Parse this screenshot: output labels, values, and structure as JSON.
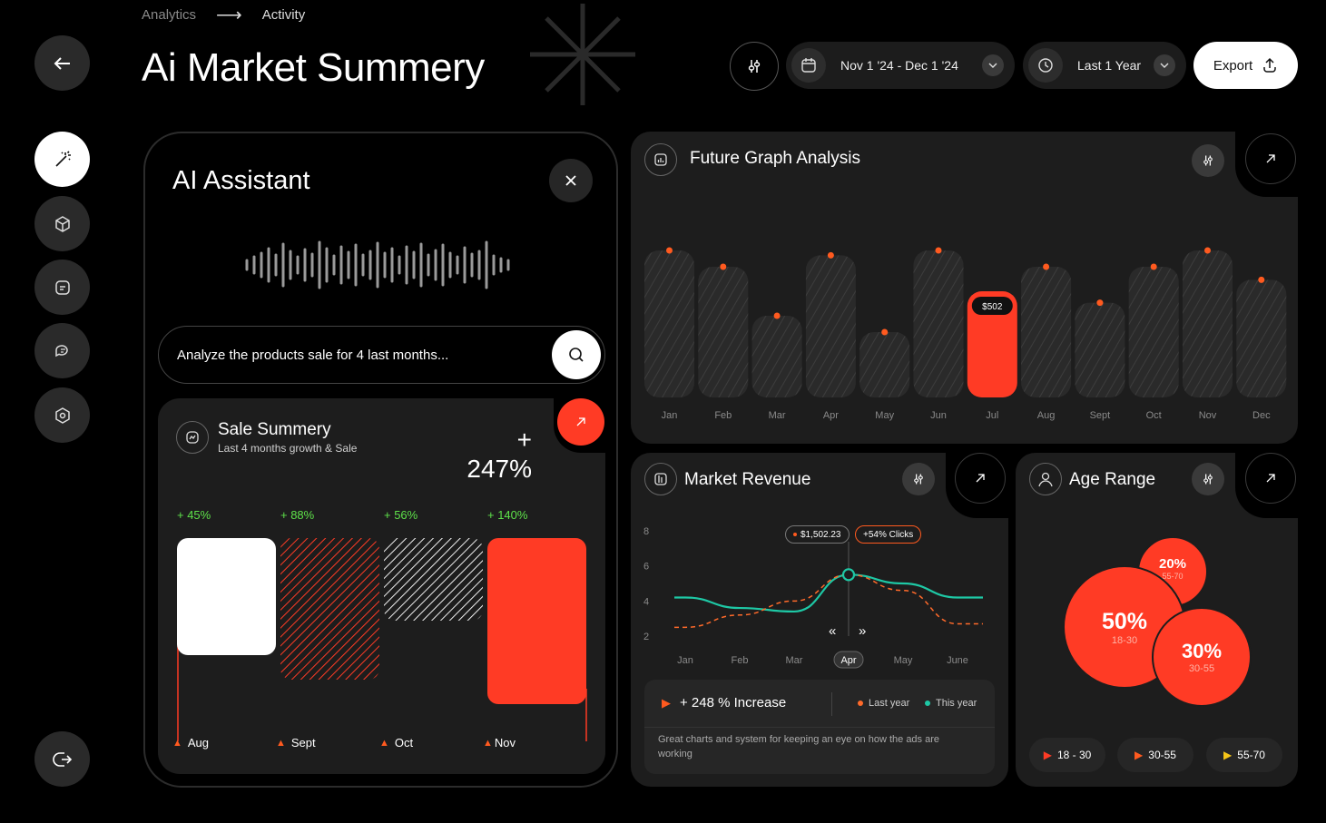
{
  "breadcrumb": {
    "parent": "Analytics",
    "current": "Activity"
  },
  "page_title": "Ai Market Summery",
  "toolbar": {
    "date_range": "Nov 1 '24 - Dec 1 '24",
    "period": "Last 1 Year",
    "export_label": "Export"
  },
  "sidebar": {
    "items": [
      {
        "icon": "arrow-left-icon"
      },
      {
        "icon": "magic-wand-icon"
      },
      {
        "icon": "cube-icon"
      },
      {
        "icon": "document-icon"
      },
      {
        "icon": "chat-icon"
      },
      {
        "icon": "hexagon-settings-icon"
      },
      {
        "icon": "logout-icon"
      }
    ]
  },
  "assistant": {
    "title": "AI Assistant",
    "prompt_value": "Analyze the products sale for 4 last months...",
    "sale": {
      "title": "Sale Summery",
      "subtitle": "Last 4 months growth & Sale",
      "total": "+ 247%",
      "bars": [
        {
          "label": "Aug",
          "growth": "+ 45%"
        },
        {
          "label": "Sept",
          "growth": "+ 88%"
        },
        {
          "label": "Oct",
          "growth": "+ 56%"
        },
        {
          "label": "Nov",
          "growth": "+ 140%"
        }
      ]
    }
  },
  "future_graph": {
    "title": "Future Graph Analysis",
    "highlight_label": "$502",
    "chart_data": {
      "type": "bar",
      "categories": [
        "Jan",
        "Feb",
        "Mar",
        "Apr",
        "May",
        "Jun",
        "Jul",
        "Aug",
        "Sept",
        "Oct",
        "Nov",
        "Dec"
      ],
      "values": [
        0.9,
        0.8,
        0.5,
        0.87,
        0.4,
        0.9,
        0.65,
        0.8,
        0.58,
        0.8,
        0.9,
        0.72
      ],
      "highlight_index": 6,
      "accent": "#ff3b25"
    }
  },
  "market_revenue": {
    "title": "Market Revenue",
    "tooltip_value": "$1,502.23",
    "tooltip_clicks": "+54% Clicks",
    "increase_text": "+ 248 % Increase",
    "legend_last": "Last year",
    "legend_this": "This year",
    "description": "Great charts and system for keeping an eye on how the ads are working",
    "chart_data": {
      "type": "line",
      "categories": [
        "Jan",
        "Feb",
        "Mar",
        "Apr",
        "May",
        "June"
      ],
      "y_ticks": [
        "8",
        "6",
        "4",
        "2"
      ],
      "ylim": [
        2,
        8
      ],
      "selected": "Apr",
      "series": [
        {
          "name": "This year",
          "color": "#1ec8a5",
          "values": [
            4.2,
            3.6,
            3.4,
            5.5,
            5.0,
            4.2
          ]
        },
        {
          "name": "Last year",
          "color": "#ff6a2a",
          "values": [
            2.5,
            3.2,
            4.0,
            5.5,
            4.6,
            2.7
          ]
        }
      ]
    }
  },
  "age_range": {
    "title": "Age Range",
    "chart_data": {
      "type": "pie",
      "slices": [
        {
          "label": "18-30",
          "value": 50
        },
        {
          "label": "30-55",
          "value": 30
        },
        {
          "label": "55-70",
          "value": 20
        }
      ]
    },
    "bubbles": [
      {
        "pct": "50%",
        "range": "18-30"
      },
      {
        "pct": "30%",
        "range": "30-55"
      },
      {
        "pct": "20%",
        "range": "55-70"
      }
    ],
    "filters": [
      "18 - 30",
      "30-55",
      "55-70"
    ]
  }
}
